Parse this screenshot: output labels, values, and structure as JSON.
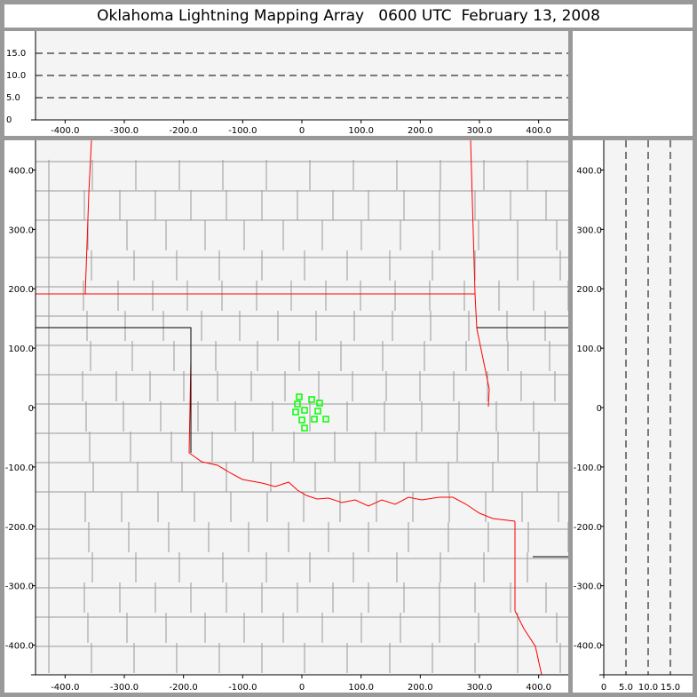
{
  "title": "Oklahoma Lightning Mapping Array   0600 UTC  February 13, 2008",
  "colors": {
    "background": "#999999",
    "plot_bg": "#f4f4f4",
    "state_border": "#ff0000",
    "county_border": "#999999",
    "source_marker": "#00ff00"
  },
  "chart_data": [
    {
      "name": "altitude-vs-east-west",
      "type": "scatter",
      "x_ticks": [
        "-400.0",
        "-300.0",
        "-200.0",
        "-100.0",
        "0",
        "100.0",
        "200.0",
        "300.0",
        "400.0"
      ],
      "x_tick_values": [
        -400,
        -300,
        -200,
        -100,
        0,
        100,
        200,
        300,
        400
      ],
      "y_ticks": [
        "0",
        "5.0",
        "10.0",
        "15.0"
      ],
      "y_tick_values": [
        0,
        5,
        10,
        15
      ],
      "xlim": [
        -450,
        450
      ],
      "ylim": [
        0,
        20
      ],
      "grid": "dashed at 5, 10, 15",
      "points": []
    },
    {
      "name": "plan-view-map",
      "type": "scatter",
      "x_ticks": [
        "-400.0",
        "-300.0",
        "-200.0",
        "-100.0",
        "0",
        "100.0",
        "200.0",
        "300.0",
        "400.0"
      ],
      "x_tick_values": [
        -400,
        -300,
        -200,
        -100,
        0,
        100,
        200,
        300,
        400
      ],
      "y_ticks": [
        "400.0",
        "300.0",
        "200.0",
        "100.0",
        "0",
        "-100.0",
        "-200.0",
        "-300.0",
        "-400.0"
      ],
      "y_tick_values": [
        400,
        300,
        200,
        100,
        0,
        -100,
        -200,
        -300,
        -400
      ],
      "xlim": [
        -450,
        450
      ],
      "ylim": [
        -450,
        450
      ],
      "points": [
        {
          "x": -4.5,
          "y": 18
        },
        {
          "x": 16.5,
          "y": 13.5
        },
        {
          "x": -7.5,
          "y": 6
        },
        {
          "x": 30,
          "y": 7.5
        },
        {
          "x": 4.5,
          "y": -4.5
        },
        {
          "x": -10.5,
          "y": -7.5
        },
        {
          "x": 27,
          "y": -6
        },
        {
          "x": 0,
          "y": -21
        },
        {
          "x": 21,
          "y": -19.5
        },
        {
          "x": 40.5,
          "y": -19.5
        },
        {
          "x": 4.5,
          "y": -34.5
        }
      ]
    },
    {
      "name": "north-south-vs-altitude",
      "type": "scatter",
      "x_ticks": [
        "0",
        "5.0",
        "10.0",
        "15.0"
      ],
      "x_tick_values": [
        0,
        5,
        10,
        15
      ],
      "y_ticks": [
        "400.0",
        "300.0",
        "200.0",
        "100.0",
        "0",
        "-100.0",
        "-200.0",
        "-300.0",
        "-400.0"
      ],
      "y_tick_values": [
        400,
        300,
        200,
        100,
        0,
        -100,
        -200,
        -300,
        -400
      ],
      "xlim": [
        0,
        20
      ],
      "ylim": [
        -450,
        450
      ],
      "grid": "dashed at 5, 10, 15",
      "points": []
    }
  ]
}
